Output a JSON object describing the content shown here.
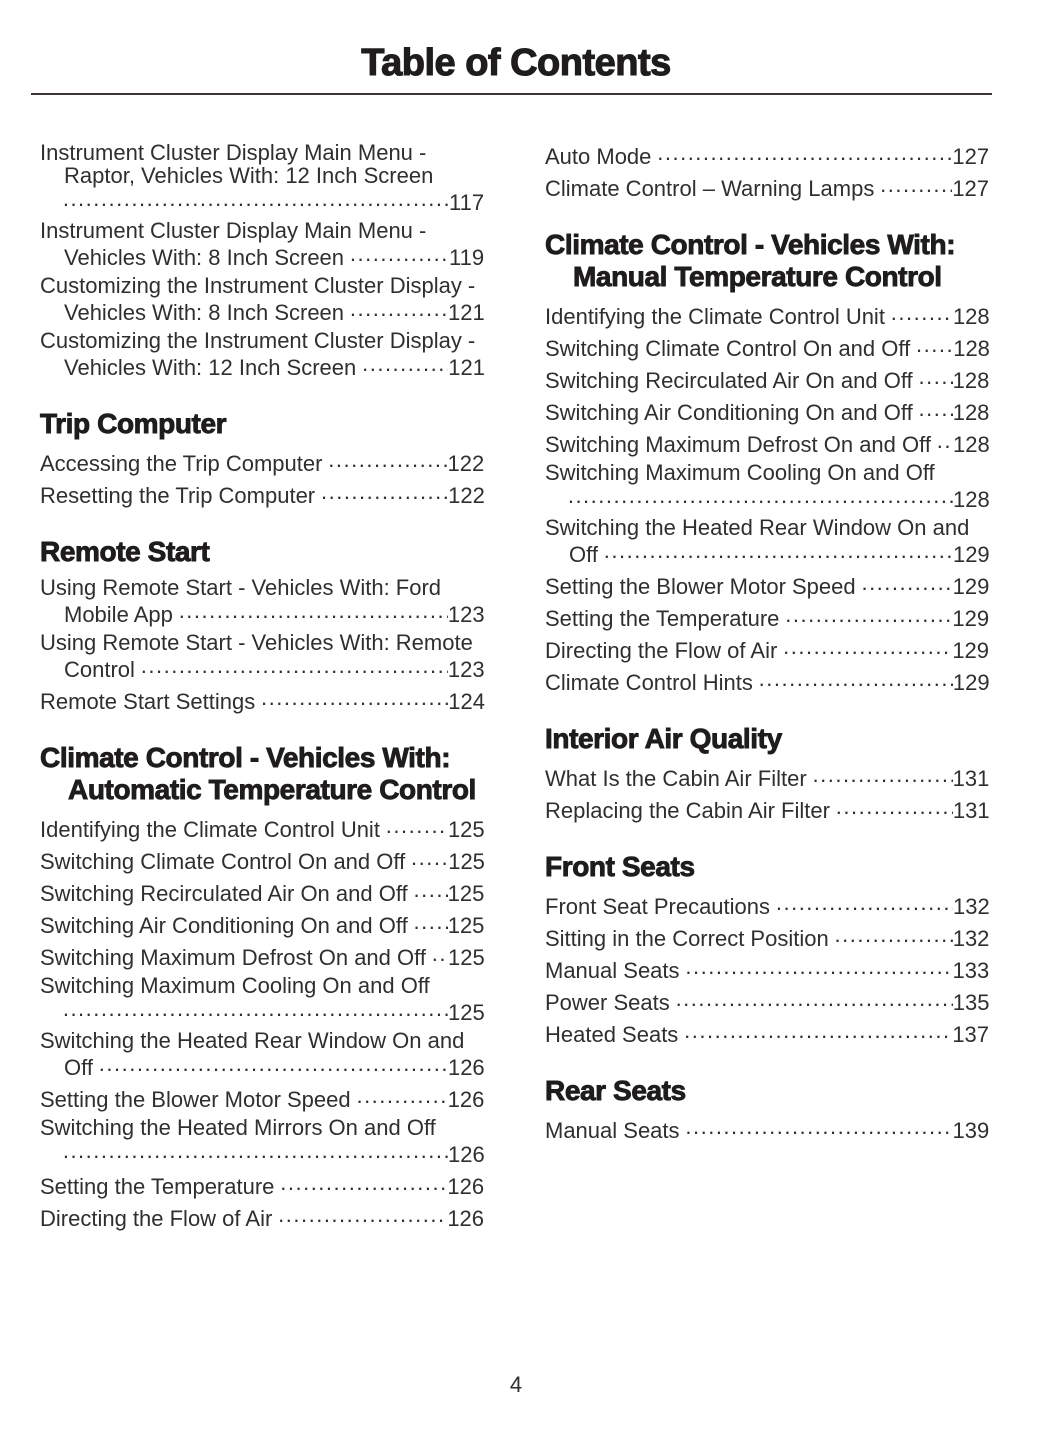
{
  "page": {
    "title": "Table of Contents",
    "page_number": "4"
  },
  "colors": {
    "heading_text": "#1f1c1d",
    "body_text": "#312e2f",
    "rule": "#3a3436",
    "background": "#ffffff"
  },
  "columns": {
    "left": {
      "sections": [
        {
          "heading": null,
          "entries": [
            {
              "label": "Instrument Cluster Display Main Menu - Raptor, Vehicles With: 12 Inch Screen",
              "page": "117"
            },
            {
              "label": "Instrument Cluster Display Main Menu - Vehicles With: 8 Inch Screen",
              "page": "119"
            },
            {
              "label": "Customizing the Instrument Cluster Display - Vehicles With: 8 Inch Screen",
              "page": "121"
            },
            {
              "label": "Customizing the Instrument Cluster Display - Vehicles With: 12 Inch Screen",
              "page": "121"
            }
          ]
        },
        {
          "heading": "Trip Computer",
          "entries": [
            {
              "label": "Accessing the Trip Computer",
              "page": "122"
            },
            {
              "label": "Resetting the Trip Computer",
              "page": "122"
            }
          ]
        },
        {
          "heading": "Remote Start",
          "entries": [
            {
              "label": "Using Remote Start - Vehicles With: Ford Mobile App",
              "page": "123"
            },
            {
              "label": "Using Remote Start - Vehicles With: Remote Control",
              "page": "123"
            },
            {
              "label": "Remote Start Settings",
              "page": "124"
            }
          ]
        },
        {
          "heading": "Climate Control - Vehicles With: Automatic Temperature Control",
          "entries": [
            {
              "label": "Identifying the Climate Control Unit",
              "page": "125"
            },
            {
              "label": "Switching Climate Control On and Off",
              "page": "125"
            },
            {
              "label": "Switching Recirculated Air On and Off",
              "page": "125"
            },
            {
              "label": "Switching Air Conditioning On and Off",
              "page": "125"
            },
            {
              "label": "Switching Maximum Defrost On and Off",
              "page": "125"
            },
            {
              "label": "Switching Maximum Cooling On and Off",
              "page": "125"
            },
            {
              "label": "Switching the Heated Rear Window On and Off",
              "page": "126"
            },
            {
              "label": "Setting the Blower Motor Speed",
              "page": "126"
            },
            {
              "label": "Switching the Heated Mirrors On and Off",
              "page": "126"
            },
            {
              "label": "Setting the Temperature",
              "page": "126"
            },
            {
              "label": "Directing the Flow of Air",
              "page": "126"
            }
          ]
        }
      ]
    },
    "right": {
      "sections": [
        {
          "heading": null,
          "entries": [
            {
              "label": "Auto Mode",
              "page": "127"
            },
            {
              "label": "Climate Control – Warning Lamps",
              "page": "127"
            }
          ]
        },
        {
          "heading": "Climate Control - Vehicles With: Manual Temperature Control",
          "entries": [
            {
              "label": "Identifying the Climate Control Unit",
              "page": "128"
            },
            {
              "label": "Switching Climate Control On and Off",
              "page": "128"
            },
            {
              "label": "Switching Recirculated Air On and Off",
              "page": "128"
            },
            {
              "label": "Switching Air Conditioning On and Off",
              "page": "128"
            },
            {
              "label": "Switching Maximum Defrost On and Off",
              "page": "128"
            },
            {
              "label": "Switching Maximum Cooling On and Off",
              "page": "128"
            },
            {
              "label": "Switching the Heated Rear Window On and Off",
              "page": "129"
            },
            {
              "label": "Setting the Blower Motor Speed",
              "page": "129"
            },
            {
              "label": "Setting the Temperature",
              "page": "129"
            },
            {
              "label": "Directing the Flow of Air",
              "page": "129"
            },
            {
              "label": "Climate Control Hints",
              "page": "129"
            }
          ]
        },
        {
          "heading": "Interior Air Quality",
          "entries": [
            {
              "label": "What Is the Cabin Air Filter",
              "page": "131"
            },
            {
              "label": "Replacing the Cabin Air Filter",
              "page": "131"
            }
          ]
        },
        {
          "heading": "Front Seats",
          "entries": [
            {
              "label": "Front Seat Precautions",
              "page": "132"
            },
            {
              "label": "Sitting in the Correct Position",
              "page": "132"
            },
            {
              "label": "Manual Seats",
              "page": "133"
            },
            {
              "label": "Power Seats",
              "page": "135"
            },
            {
              "label": "Heated Seats",
              "page": "137"
            }
          ]
        },
        {
          "heading": "Rear Seats",
          "entries": [
            {
              "label": "Manual Seats",
              "page": "139"
            }
          ]
        }
      ]
    }
  }
}
